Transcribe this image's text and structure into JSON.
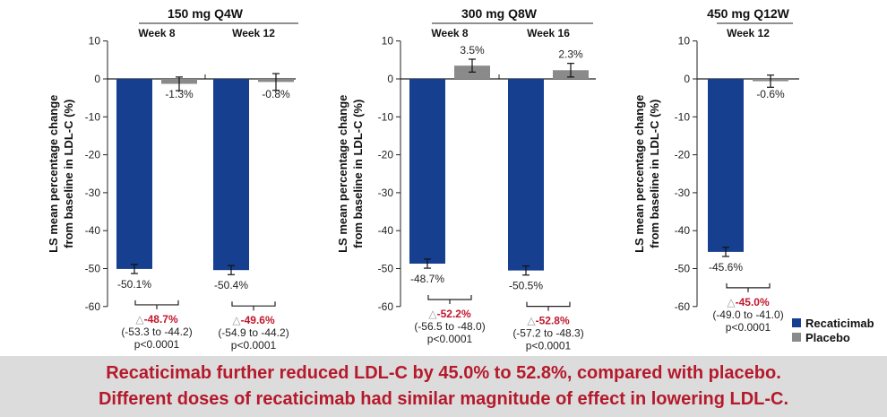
{
  "chart_data": {
    "type": "bar",
    "ylabel_line1": "LS mean percentage change",
    "ylabel_line2": "from baseline in LDL-C (%)",
    "ylim": [
      -60,
      10
    ],
    "yticks": [
      10,
      0,
      -10,
      -20,
      -30,
      -40,
      -50,
      -60
    ],
    "colors": {
      "Recaticimab": "#173f8f",
      "Placebo": "#8a8a8a",
      "delta": "#c0182c"
    },
    "legend": {
      "position": "bottom-right",
      "entries": [
        "Recaticimab",
        "Placebo"
      ]
    },
    "panels": [
      {
        "title": "150 mg Q4W",
        "groups": [
          {
            "label": "Week 8",
            "recaticimab": -50.1,
            "recaticimab_err": 1.2,
            "recaticimab_label": "-50.1%",
            "placebo": -1.3,
            "placebo_err": 1.8,
            "placebo_label": "-1.3%",
            "delta": "-48.7%",
            "ci": "(-53.3 to -44.2)",
            "p": "p<0.0001"
          },
          {
            "label": "Week 12",
            "recaticimab": -50.4,
            "recaticimab_err": 1.2,
            "recaticimab_label": "-50.4%",
            "placebo": -0.8,
            "placebo_err": 2.2,
            "placebo_label": "-0.8%",
            "delta": "-49.6%",
            "ci": "(-54.9 to -44.2)",
            "p": "p<0.0001"
          }
        ]
      },
      {
        "title": "300 mg Q8W",
        "groups": [
          {
            "label": "Week 8",
            "recaticimab": -48.7,
            "recaticimab_err": 1.2,
            "recaticimab_label": "-48.7%",
            "placebo": 3.5,
            "placebo_err": 1.7,
            "placebo_label": "3.5%",
            "delta": "-52.2%",
            "ci": "(-56.5 to -48.0)",
            "p": "p<0.0001"
          },
          {
            "label": "Week 16",
            "recaticimab": -50.5,
            "recaticimab_err": 1.2,
            "recaticimab_label": "-50.5%",
            "placebo": 2.3,
            "placebo_err": 1.8,
            "placebo_label": "2.3%",
            "delta": "-52.8%",
            "ci": "(-57.2 to -48.3)",
            "p": "p<0.0001"
          }
        ]
      },
      {
        "title": "450 mg Q12W",
        "groups": [
          {
            "label": "Week 12",
            "recaticimab": -45.6,
            "recaticimab_err": 1.2,
            "recaticimab_label": "-45.6%",
            "placebo": -0.6,
            "placebo_err": 1.6,
            "placebo_label": "-0.6%",
            "delta": "-45.0%",
            "ci": "(-49.0 to -41.0)",
            "p": "p<0.0001"
          }
        ]
      }
    ]
  },
  "banner": {
    "line1": "Recaticimab further reduced LDL-C by 45.0% to 52.8%, compared with placebo.",
    "line2": "Different doses of recaticimab had similar magnitude of effect in lowering LDL-C."
  }
}
